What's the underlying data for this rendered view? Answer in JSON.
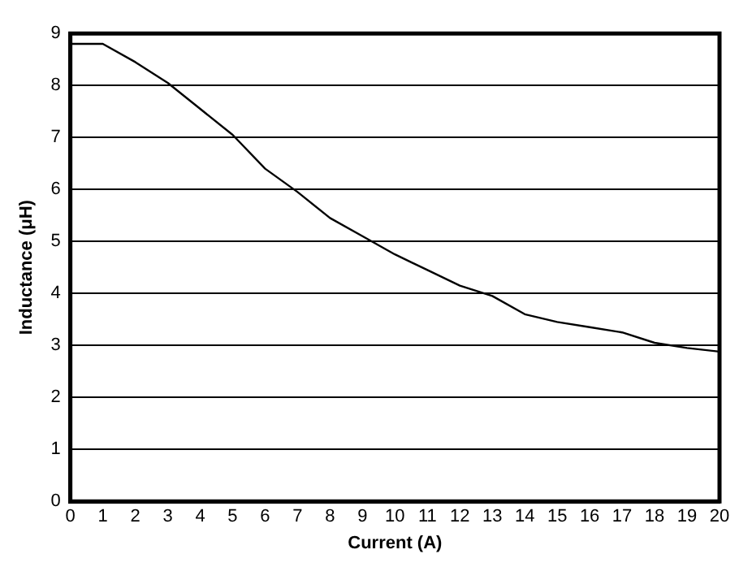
{
  "chart_data": {
    "type": "line",
    "xlabel": "Current (A)",
    "ylabel": "Inductance (μH)",
    "x": [
      0,
      1,
      2,
      3,
      4,
      5,
      6,
      7,
      8,
      9,
      10,
      11,
      12,
      13,
      14,
      15,
      16,
      17,
      18,
      19,
      20
    ],
    "series": [
      {
        "color": "#000000",
        "values": [
          8.8,
          8.8,
          8.45,
          8.05,
          7.55,
          7.05,
          6.4,
          5.95,
          5.45,
          5.1,
          4.75,
          4.45,
          4.15,
          3.95,
          3.6,
          3.45,
          3.35,
          3.25,
          3.05,
          2.95,
          2.88
        ]
      }
    ],
    "xlim": [
      0,
      20
    ],
    "xticks": [
      0,
      1,
      2,
      3,
      4,
      5,
      6,
      7,
      8,
      9,
      10,
      11,
      12,
      13,
      14,
      15,
      16,
      17,
      18,
      19,
      20
    ],
    "ylim": [
      0,
      9
    ],
    "yticks": [
      0,
      1,
      2,
      3,
      4,
      5,
      6,
      7,
      8,
      9
    ],
    "grid": "y",
    "legend": false,
    "marker": "none",
    "line_style": "solid"
  }
}
